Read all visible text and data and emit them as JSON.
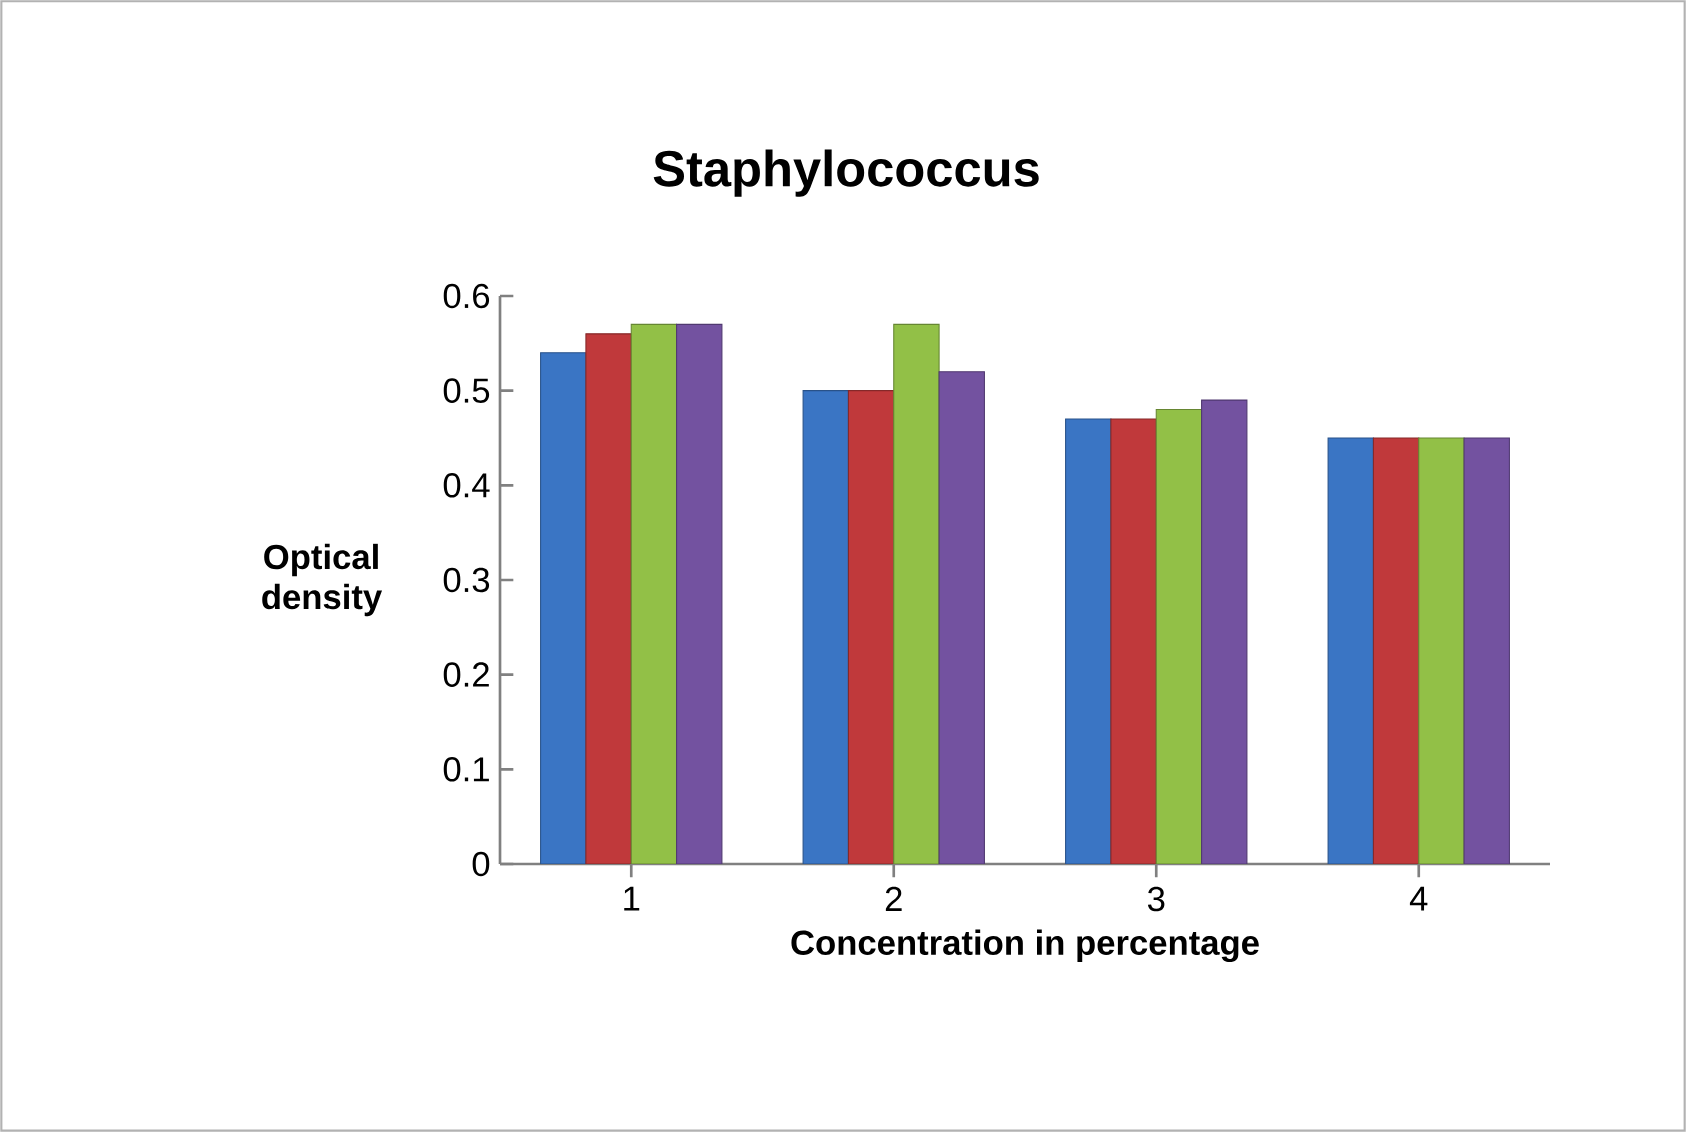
{
  "chart_data": {
    "type": "bar",
    "title": "Staphylococcus",
    "xlabel": "Concentration in percentage",
    "ylabel": "Optical density",
    "categories": [
      "1",
      "2",
      "3",
      "4"
    ],
    "series": [
      {
        "color": "#3a75c4",
        "values": [
          0.54,
          0.5,
          0.47,
          0.45
        ]
      },
      {
        "color": "#c0393b",
        "values": [
          0.56,
          0.5,
          0.47,
          0.45
        ]
      },
      {
        "color": "#92c047",
        "values": [
          0.57,
          0.57,
          0.48,
          0.45
        ]
      },
      {
        "color": "#7352a0",
        "values": [
          0.57,
          0.52,
          0.49,
          0.45
        ]
      }
    ],
    "ylim": [
      0,
      0.6
    ],
    "yticks": [
      0,
      0.1,
      0.2,
      0.3,
      0.4,
      0.5,
      0.6
    ]
  }
}
